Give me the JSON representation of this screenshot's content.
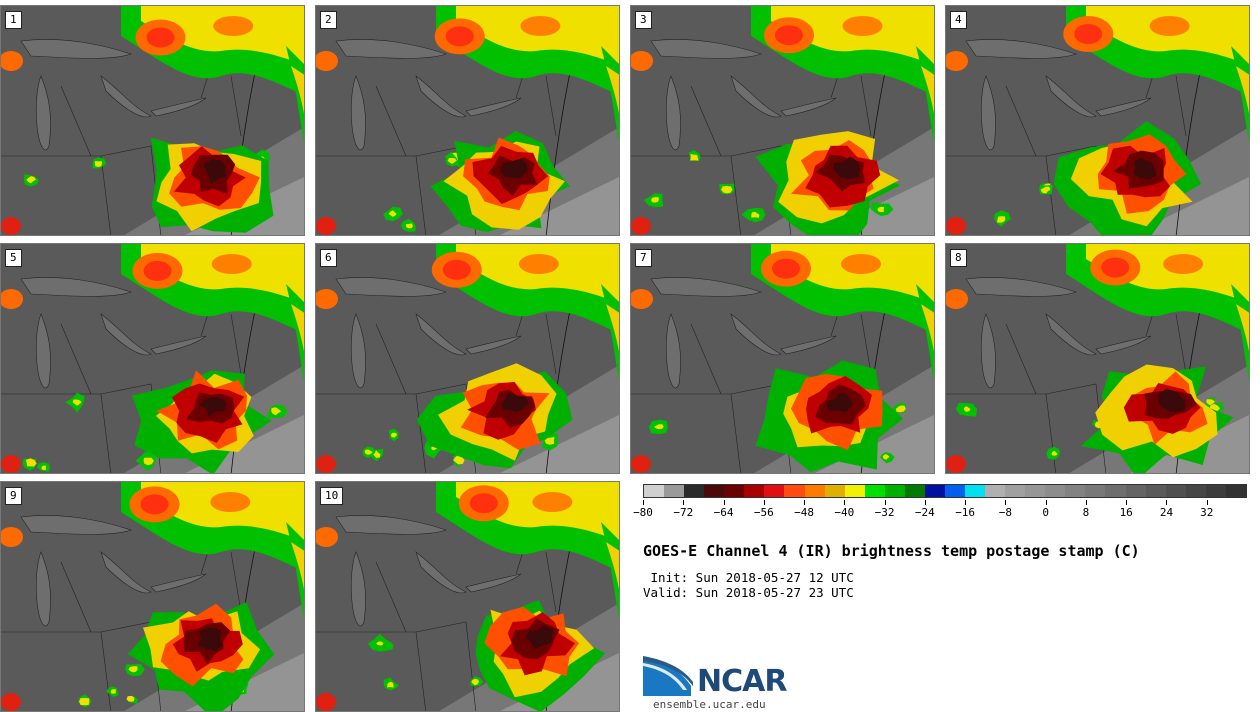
{
  "panels": [
    {
      "label": "1"
    },
    {
      "label": "2"
    },
    {
      "label": "3"
    },
    {
      "label": "4"
    },
    {
      "label": "5"
    },
    {
      "label": "6"
    },
    {
      "label": "7"
    },
    {
      "label": "8"
    },
    {
      "label": "9"
    },
    {
      "label": "10"
    }
  ],
  "colorbar": {
    "colors": [
      "#d0d0d0",
      "#9a9a9a",
      "#2a2a2a",
      "#4a0a0a",
      "#6a0000",
      "#a80000",
      "#e01010",
      "#ff4a10",
      "#ff7a00",
      "#e0b000",
      "#f0f000",
      "#00e000",
      "#00b000",
      "#007a00",
      "#0010a0",
      "#0060f0",
      "#00e0f0",
      "#b0b0b0",
      "#a0a0a0",
      "#969696",
      "#8c8c8c",
      "#828282",
      "#787878",
      "#6e6e6e",
      "#646464",
      "#5a5a5a",
      "#505050",
      "#464646",
      "#3c3c3c",
      "#323232"
    ],
    "tick_values": [
      -80,
      -72,
      -64,
      -56,
      -48,
      -40,
      -32,
      -24,
      -16,
      -8,
      0,
      8,
      16,
      24,
      32
    ],
    "tick_labels": [
      "−80",
      "−72",
      "−64",
      "−56",
      "−48",
      "−40",
      "−32",
      "−24",
      "−16",
      "−8",
      "0",
      "8",
      "16",
      "24",
      "32"
    ],
    "min": -80,
    "max": 40
  },
  "title": "GOES-E Channel 4 (IR) brightness temp postage stamp (C)",
  "init_line": " Init: Sun 2018-05-27 12 UTC",
  "valid_line": "Valid: Sun 2018-05-27 23 UTC",
  "logo": {
    "text": "NCAR",
    "url": "ensemble.ucar.edu"
  }
}
